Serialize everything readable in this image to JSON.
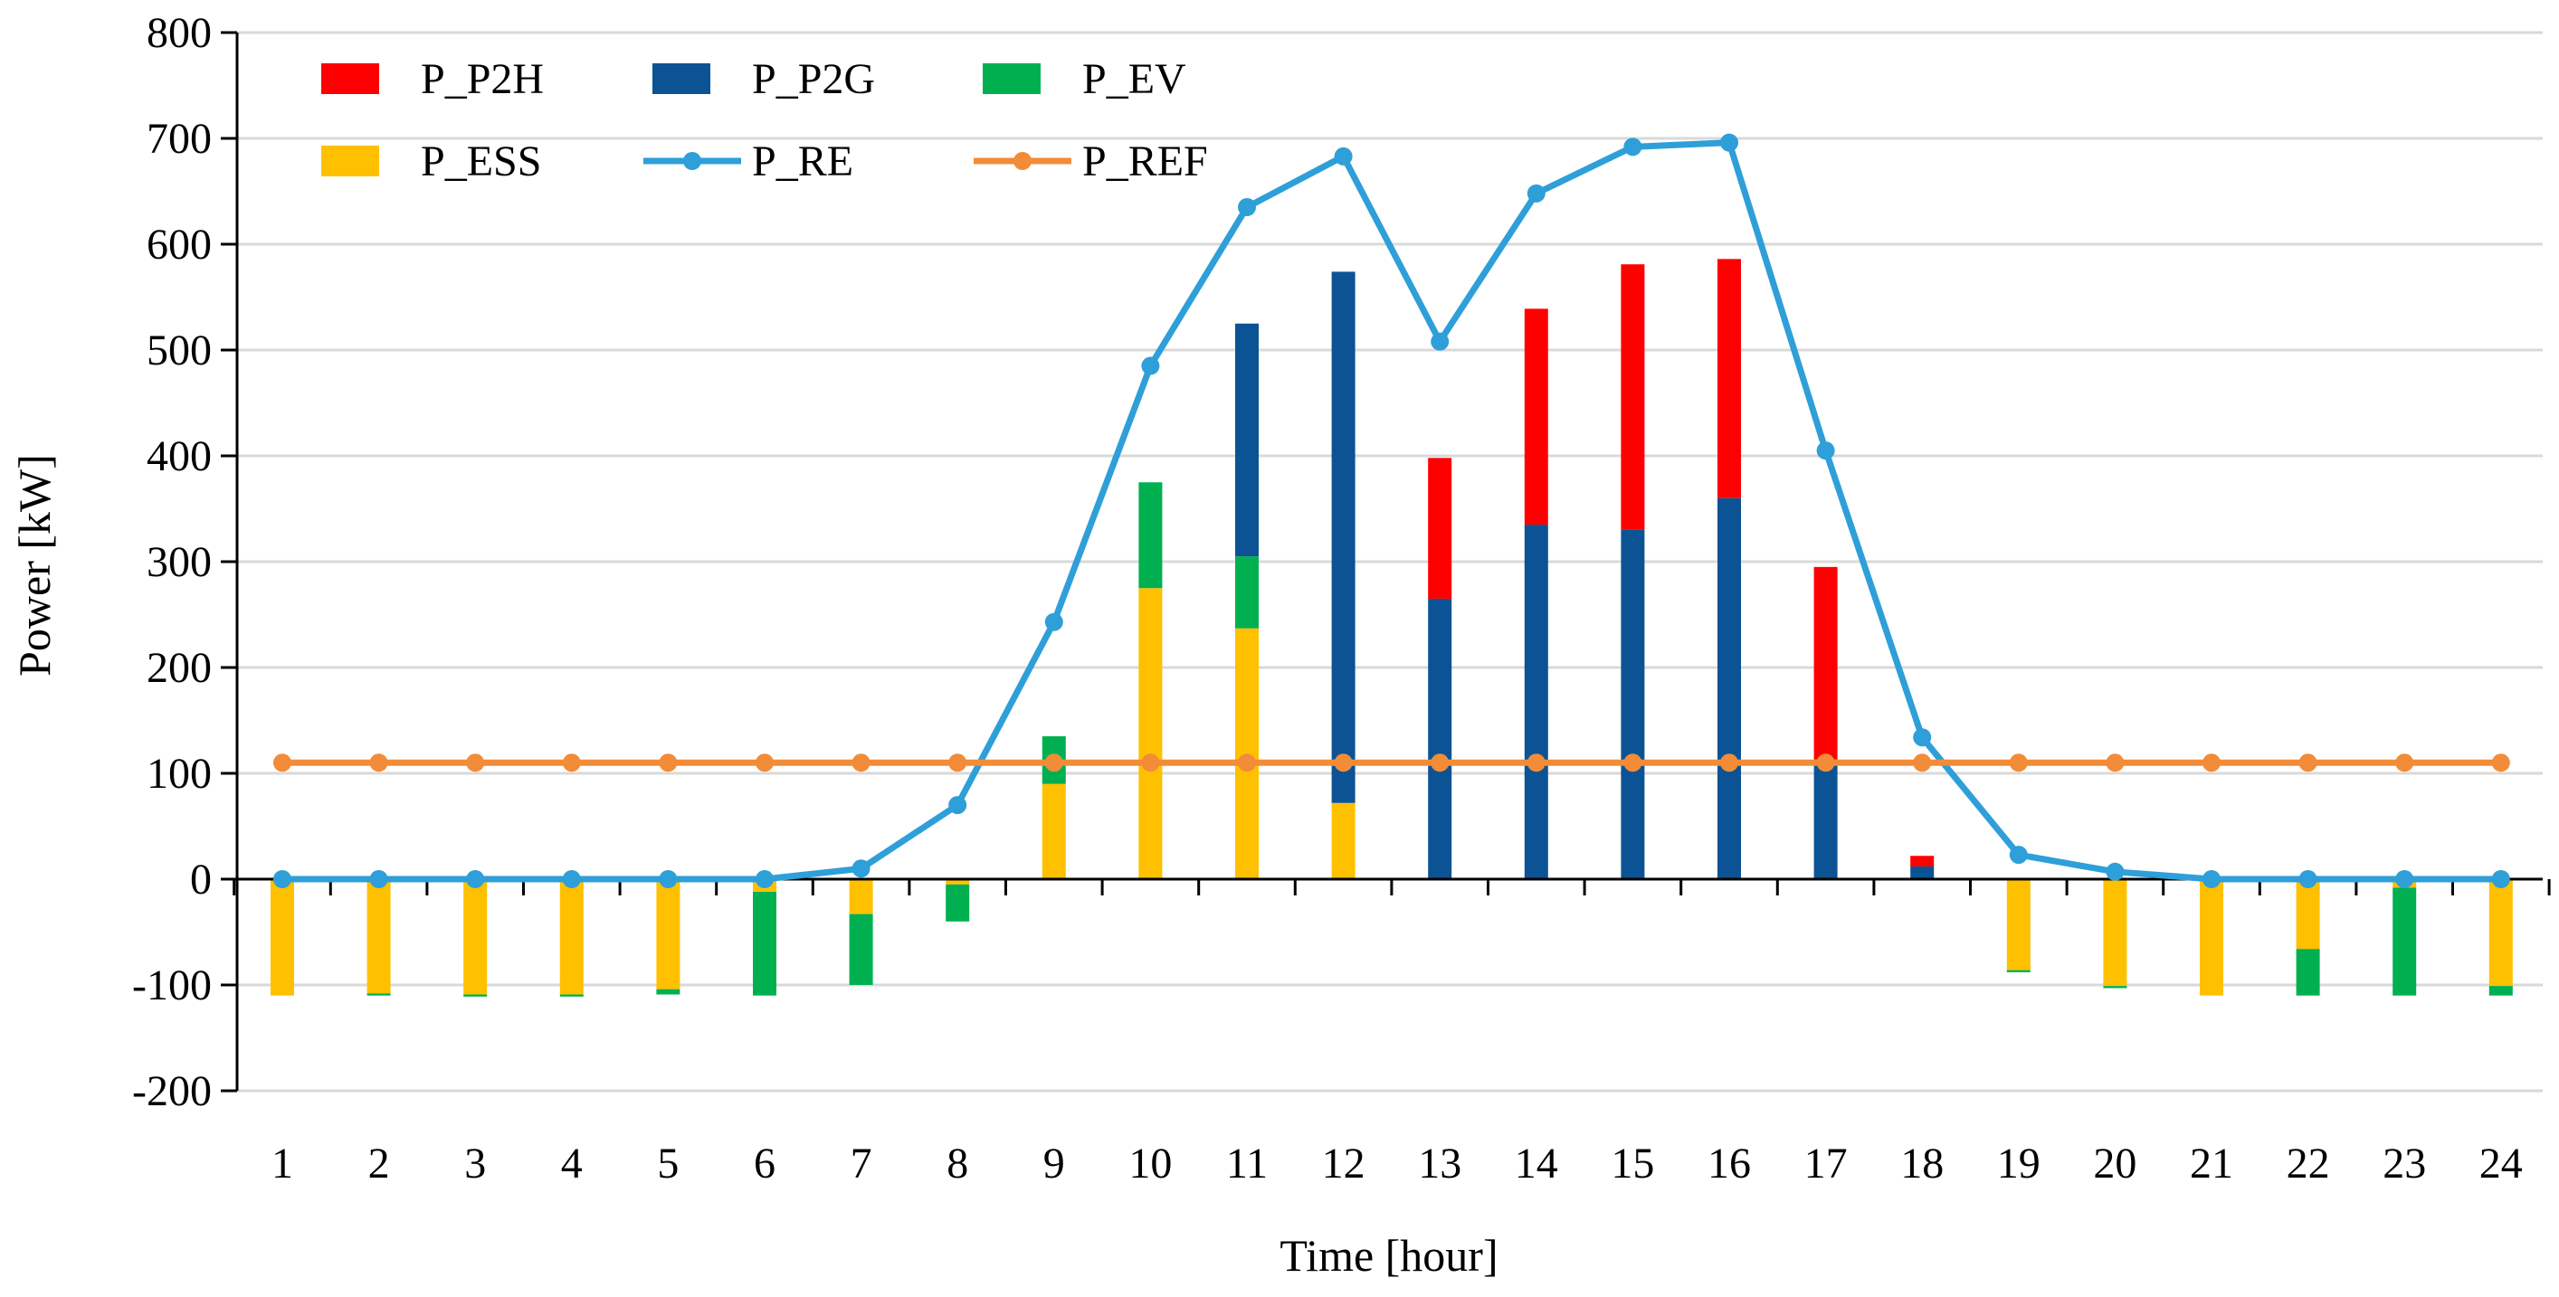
{
  "chart_data": {
    "type": "bar",
    "stacked": true,
    "title": "",
    "xlabel": "Time [hour]",
    "ylabel": "Power [kW]",
    "ylim": [
      -200,
      800
    ],
    "yticks": [
      -200,
      -100,
      0,
      100,
      200,
      300,
      400,
      500,
      600,
      700,
      800
    ],
    "grid": true,
    "legend_position": "top-left",
    "categories": [
      "1",
      "2",
      "3",
      "4",
      "5",
      "6",
      "7",
      "8",
      "9",
      "10",
      "11",
      "12",
      "13",
      "14",
      "15",
      "16",
      "17",
      "18",
      "19",
      "20",
      "21",
      "22",
      "23",
      "24"
    ],
    "series": [
      {
        "name": "P_ESS",
        "kind": "bar",
        "color": "#FFC000",
        "values": [
          -110,
          -108,
          -109,
          -109,
          -104,
          -12,
          -33,
          -5,
          90,
          275,
          237,
          72,
          0,
          0,
          0,
          0,
          0,
          0,
          -86,
          -101,
          -110,
          -66,
          -8,
          -101
        ]
      },
      {
        "name": "P_EV",
        "kind": "bar",
        "color": "#00B050",
        "values": [
          0,
          -2,
          -2,
          -2,
          -5,
          -98,
          -67,
          -35,
          45,
          100,
          68,
          0,
          0,
          0,
          0,
          0,
          0,
          0,
          -2,
          -2,
          0,
          -44,
          -102,
          -9
        ]
      },
      {
        "name": "P_P2G",
        "kind": "bar",
        "color": "#0B5394",
        "values": [
          0,
          0,
          0,
          0,
          0,
          0,
          0,
          0,
          0,
          0,
          220,
          502,
          265,
          335,
          330,
          360,
          113,
          12,
          0,
          0,
          0,
          0,
          0,
          0
        ]
      },
      {
        "name": "P_P2H",
        "kind": "bar",
        "color": "#FF0000",
        "values": [
          0,
          0,
          0,
          0,
          0,
          0,
          0,
          0,
          0,
          0,
          0,
          0,
          133,
          204,
          251,
          226,
          182,
          10,
          0,
          0,
          0,
          0,
          0,
          0
        ]
      },
      {
        "name": "P_RE",
        "kind": "line",
        "color": "#2E9FD8",
        "values": [
          0,
          0,
          0,
          0,
          0,
          0,
          10,
          70,
          243,
          485,
          635,
          683,
          508,
          648,
          692,
          696,
          405,
          134,
          23,
          7,
          0,
          0,
          0,
          0
        ]
      },
      {
        "name": "P_REF",
        "kind": "line",
        "color": "#F28C38",
        "values": [
          110,
          110,
          110,
          110,
          110,
          110,
          110,
          110,
          110,
          110,
          110,
          110,
          110,
          110,
          110,
          110,
          110,
          110,
          110,
          110,
          110,
          110,
          110,
          110
        ]
      }
    ],
    "legend": [
      "P_P2H",
      "P_P2G",
      "P_EV",
      "P_ESS",
      "P_RE",
      "P_REF"
    ]
  }
}
